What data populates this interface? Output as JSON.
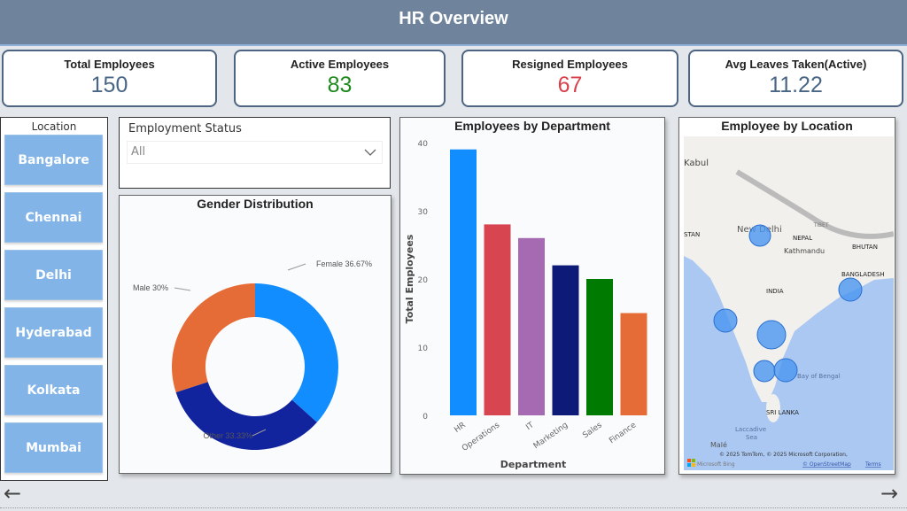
{
  "header": {
    "title": "HR Overview"
  },
  "kpis": [
    {
      "label": "Total Employees",
      "value": "150",
      "color": "#4a6685"
    },
    {
      "label": "Active Employees",
      "value": "83",
      "color": "#1e8a1e"
    },
    {
      "label": "Resigned Employees",
      "value": "67",
      "color": "#d8404a"
    },
    {
      "label": "Avg Leaves Taken(Active)",
      "value": "11.22",
      "color": "#4a6685"
    }
  ],
  "location_slicer": {
    "title": "Location",
    "items": [
      "Bangalore",
      "Chennai",
      "Delhi",
      "Hyderabad",
      "Kolkata",
      "Mumbai"
    ]
  },
  "status_slicer": {
    "title": "Employment Status",
    "value": "All",
    "icon": "chevron-down-icon"
  },
  "chart_data": [
    {
      "type": "pie",
      "title": "Gender Distribution",
      "donut": true,
      "slices": [
        {
          "label": "Female",
          "value": 36.67,
          "text": "Female 36.67%",
          "color": "#118dff"
        },
        {
          "label": "Other",
          "value": 33.33,
          "text": "Other 33.33%",
          "color": "#12239e"
        },
        {
          "label": "Male",
          "value": 30,
          "text": "Male 30%",
          "color": "#e66c37"
        }
      ]
    },
    {
      "type": "bar",
      "title": "Employees by Department",
      "xlabel": "Department",
      "ylabel": "Total Employees",
      "ylim": [
        0,
        40
      ],
      "yticks": [
        "0",
        "10",
        "20",
        "30",
        "40"
      ],
      "categories": [
        "HR",
        "Operations",
        "IT",
        "Marketing",
        "Sales",
        "Finance"
      ],
      "values": [
        39,
        28,
        26,
        22,
        20,
        15
      ],
      "colors": [
        "#118dff",
        "#d64550",
        "#a66ab2",
        "#0e1a78",
        "#007a00",
        "#e66c37"
      ],
      "grid": false
    }
  ],
  "map": {
    "title": "Employee by Location",
    "labels": [
      "Kabul",
      "TIBET",
      "New Delhi",
      "NEPAL",
      "Kathmandu",
      "BHUTAN",
      "STAN",
      "BANGLADESH",
      "INDIA",
      "Bay of Bengal",
      "SRI LANKA",
      "Laccadive",
      "Sea",
      "Malé"
    ],
    "attribution": "© 2025 TomTom, © 2025 Microsoft Corporation,",
    "terms": "Terms",
    "osm": "© OpenStreetMap",
    "brand": "Microsoft Bing",
    "bubble_color": "#4a96f0"
  },
  "nav": {
    "prev_icon": "arrow-left-icon",
    "next_icon": "arrow-right-icon",
    "prev": "←",
    "next": "→"
  }
}
